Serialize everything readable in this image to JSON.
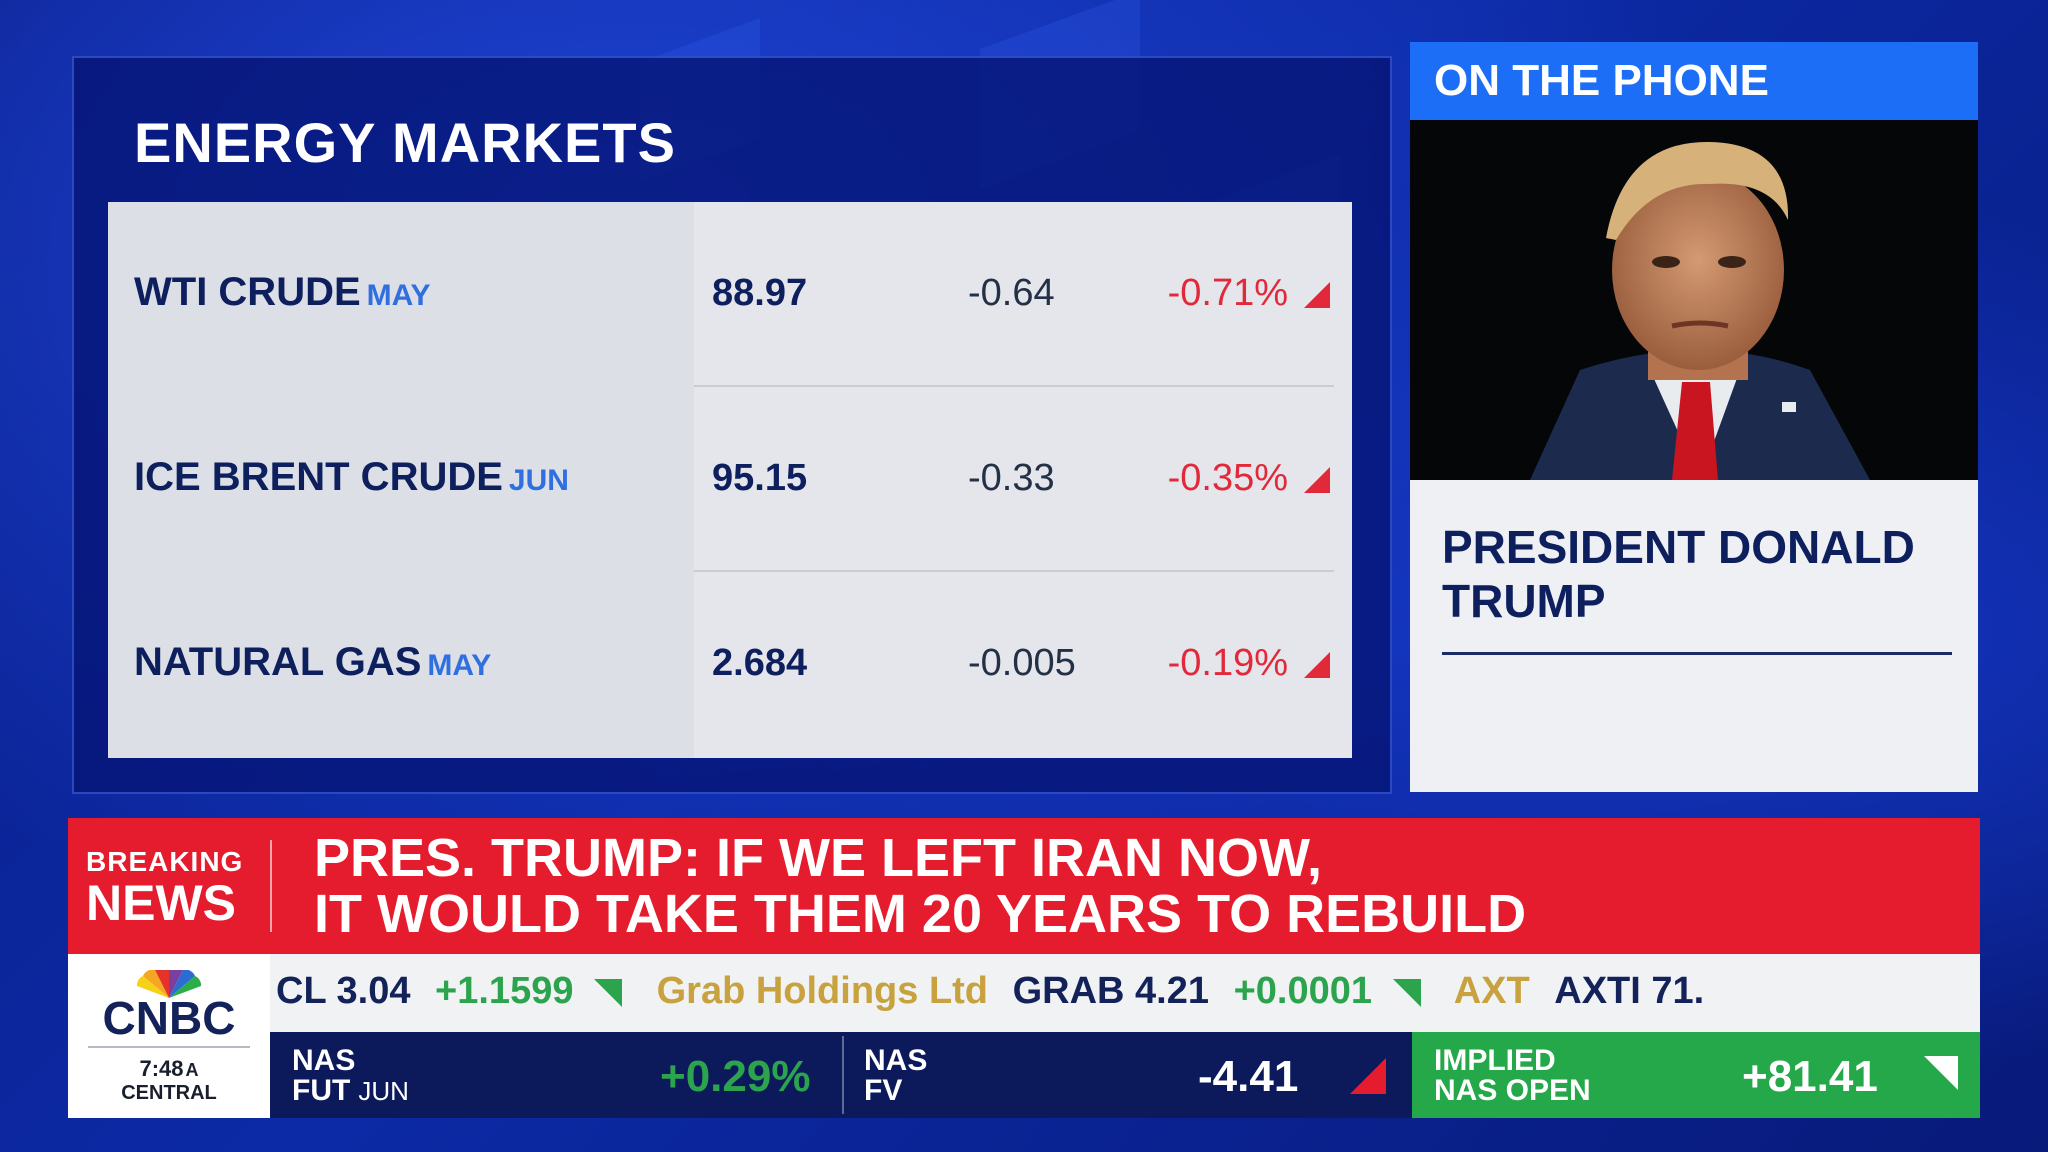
{
  "energy_markets": {
    "title": "ENERGY MARKETS",
    "rows": [
      {
        "name": "WTI CRUDE",
        "month": "MAY",
        "price": "88.97",
        "change": "-0.64",
        "pct": "-0.71%"
      },
      {
        "name": "ICE BRENT CRUDE",
        "month": "JUN",
        "price": "95.15",
        "change": "-0.33",
        "pct": "-0.35%"
      },
      {
        "name": "NATURAL GAS",
        "month": "MAY",
        "price": "2.684",
        "change": "-0.005",
        "pct": "-0.19%"
      }
    ]
  },
  "phone": {
    "header": "ON THE PHONE",
    "name_line1": "PRESIDENT DONALD",
    "name_line2": "TRUMP"
  },
  "breaking": {
    "tag_line1": "BREAKING",
    "tag_line2": "NEWS",
    "headline_line1": "PRES. TRUMP: IF WE LEFT IRAN NOW,",
    "headline_line2": "IT WOULD TAKE THEM 20 YEARS TO REBUILD"
  },
  "logo": {
    "text": "CNBC",
    "time": "7:48",
    "ampm": "A",
    "zone": "CENTRAL"
  },
  "ticker": {
    "items": [
      {
        "symbol": "CL 3.04",
        "change": "+1.1599"
      },
      {
        "company": "Grab Holdings Ltd",
        "symbol": "GRAB 4.21",
        "change": "+0.0001"
      },
      {
        "company": "AXT",
        "symbol": "AXTI 71."
      }
    ]
  },
  "futures": {
    "nas_fut": {
      "label1": "NAS",
      "label2": "FUT",
      "month": "JUN",
      "value": "+0.29%"
    },
    "nas_fv": {
      "label1": "NAS",
      "label2": "FV",
      "value": "-4.41"
    },
    "implied": {
      "label1": "IMPLIED",
      "label2": "NAS OPEN",
      "value": "+81.41"
    }
  },
  "colors": {
    "negative": "#e2293a",
    "positive": "#2ca44e",
    "brand_blue": "#1b6ef5",
    "breaking_red": "#e51c2d"
  }
}
